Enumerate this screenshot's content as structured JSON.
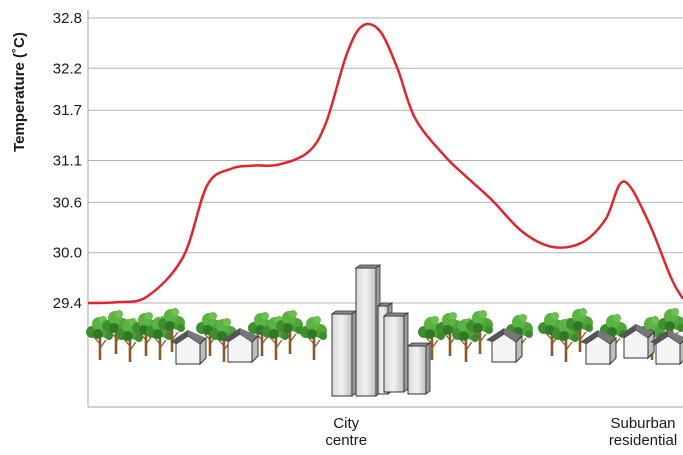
{
  "chart_data": {
    "type": "line",
    "title": "",
    "ylabel": "Temperature (˚C)",
    "xlabel": "",
    "ylim": [
      29.4,
      32.8
    ],
    "y_ticks": [
      "29.4",
      "30.0",
      "30.6",
      "31.1",
      "31.7",
      "32.2",
      "32.8"
    ],
    "grid": true,
    "x_category_labels": [
      {
        "lines": [
          "City",
          "centre"
        ],
        "x": 0.434
      },
      {
        "lines": [
          "Suburban",
          "residential"
        ],
        "x": 0.937
      }
    ],
    "series": [
      {
        "color": "#e0262c",
        "x": [
          0.0,
          0.05,
          0.1,
          0.16,
          0.2,
          0.24,
          0.28,
          0.32,
          0.37,
          0.4,
          0.434,
          0.46,
          0.49,
          0.52,
          0.55,
          0.6,
          0.64,
          0.68,
          0.73,
          0.78,
          0.83,
          0.87,
          0.9,
          0.94,
          0.98,
          1.0
        ],
        "y": [
          29.4,
          29.41,
          29.48,
          29.95,
          30.8,
          31.0,
          31.04,
          31.05,
          31.2,
          31.55,
          32.35,
          32.7,
          32.65,
          32.2,
          31.6,
          31.15,
          30.88,
          30.62,
          30.25,
          30.07,
          30.12,
          30.4,
          30.85,
          30.4,
          29.7,
          29.45
        ]
      }
    ]
  },
  "illustration": {
    "description_icons": [
      "tree-icon",
      "house-icon",
      "skyscraper-icon"
    ]
  }
}
